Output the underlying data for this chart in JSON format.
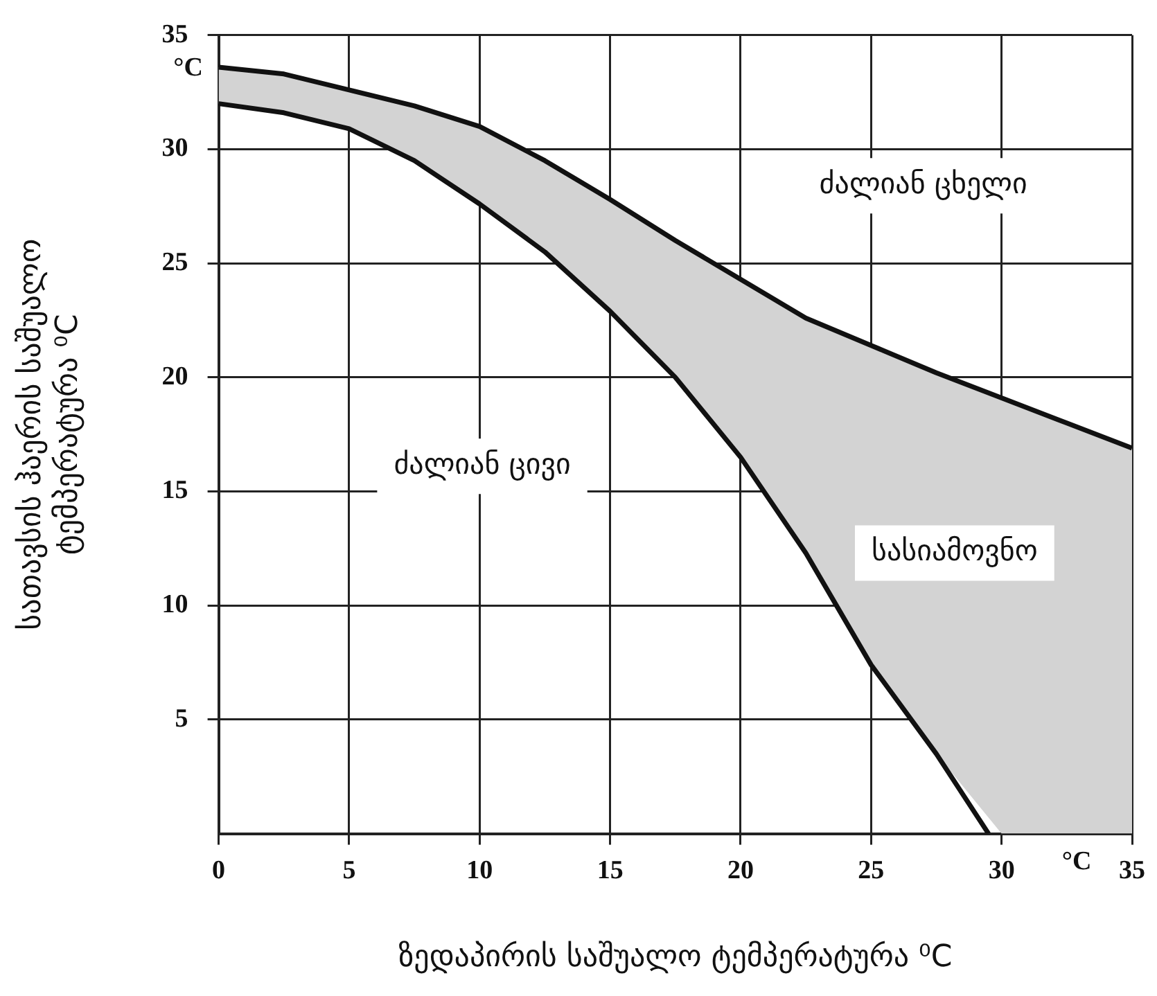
{
  "chart_data": {
    "type": "line",
    "xlabel": "ზედაპირის საშუალო ტემპერატურა ⁰C",
    "ylabel": "სათავსის ჰაერის საშუალო\nტემპერატურა ⁰C",
    "xlim": [
      0,
      35
    ],
    "ylim": [
      0,
      35
    ],
    "xticks": [
      0,
      5,
      10,
      15,
      20,
      25,
      30,
      35
    ],
    "yticks": [
      5,
      10,
      15,
      20,
      25,
      30,
      35
    ],
    "grid": true,
    "marker": "none",
    "line_style": "solid",
    "series": [
      {
        "color": "#111111",
        "x": [
          0,
          2.5,
          5,
          7.5,
          10,
          12.5,
          15,
          17.5,
          20,
          22.5,
          25,
          27.5,
          30,
          32.5,
          35
        ],
        "values": [
          33.6,
          33.3,
          32.6,
          31.9,
          31,
          29.5,
          27.8,
          26,
          24.3,
          22.6,
          21.4,
          20.2,
          19.1,
          18,
          16.9
        ],
        "upper": [
          33.6,
          33.3,
          32.6,
          31.9,
          31,
          29.5,
          27.8,
          26,
          24.3,
          22.6,
          21.4,
          20.2,
          19.1,
          18,
          16.9
        ],
        "lower": [
          32,
          31.6,
          30.9,
          29.5,
          27.6,
          25.5,
          22.9,
          20,
          16.5,
          12.3,
          7.4,
          3.5,
          0,
          0,
          0
        ]
      },
      {
        "color": "#111111",
        "x": [
          0,
          2.5,
          5,
          7.5,
          10,
          12.5,
          15,
          17.5,
          20,
          22.5,
          25,
          27.5,
          29.5
        ],
        "values": [
          32,
          31.6,
          30.9,
          29.5,
          27.6,
          25.5,
          22.9,
          20,
          16.5,
          12.3,
          7.4,
          3.5,
          0
        ]
      }
    ],
    "annotations": [
      "ძალიან ცხელი",
      "ძალიან ცივი",
      "სასიამოვნო",
      "°C",
      "°C"
    ]
  }
}
